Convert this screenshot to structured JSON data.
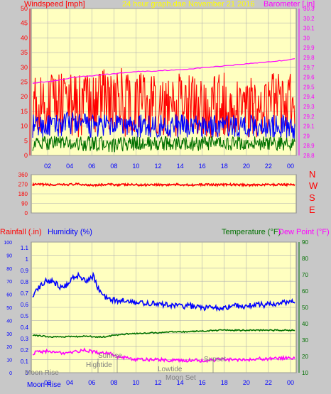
{
  "header": {
    "windspeed_label": "Windspeed [mph]",
    "title": "24 hour graph.dae   November 21 2016",
    "barometer_label": "Barometer [.in]"
  },
  "colors": {
    "panel": "#ffffc0",
    "windspeed_axis": "#ff0000",
    "barometer_axis": "#ff00ff",
    "title": "#ffff00",
    "humidity": "#0000ff",
    "temperature": "#007000",
    "dew_point": "#ff00ff",
    "direction": "#ff0000",
    "compass": "#ff0000"
  },
  "compass": {
    "n": "N",
    "w": "W",
    "s": "S",
    "e": "E"
  },
  "lower_header": {
    "rainfall_label": "Rainfall (.in)",
    "humidity_label": "Humidity (%)",
    "temperature_label": "Temperature (°F)",
    "dew_point_label": "Dew Point (°F)"
  },
  "annotations": {
    "moon_rise_top": "Moon Rise",
    "hightide": "Hightide",
    "sunrise": "Sunrise",
    "lowtide": "Lowtide",
    "moon_set": "Moon Set",
    "sunset": "Sunset",
    "moon_rise_axis": "Moon Rise"
  },
  "chart_data": [
    {
      "type": "line",
      "name": "wind-barometer",
      "x_ticks": [
        "02",
        "04",
        "06",
        "08",
        "10",
        "12",
        "14",
        "16",
        "18",
        "20",
        "22",
        "00"
      ],
      "y_left_ticks": [
        "0",
        "5",
        "10",
        "15",
        "20",
        "25",
        "30",
        "35",
        "40",
        "45",
        "50"
      ],
      "y_left_range": [
        0,
        50
      ],
      "y_right_ticks": [
        "28.8",
        "28.9",
        "29",
        "29.1",
        "29.2",
        "29.3",
        "29.4",
        "29.5",
        "29.6",
        "29.7",
        "29.8",
        "29.9",
        "30",
        "30.1",
        "30.2",
        "30.3"
      ],
      "y_right_range": [
        28.8,
        30.3
      ],
      "series": [
        {
          "color": "#ff0000",
          "values": [
            18,
            17,
            18,
            17,
            17,
            17,
            18,
            18,
            17,
            17,
            17,
            17,
            17,
            17,
            17,
            17,
            17,
            17,
            17,
            17,
            17,
            17,
            17,
            17
          ]
        },
        {
          "color": "#0000ff",
          "values": [
            10,
            10,
            10,
            11,
            11,
            10,
            10,
            10,
            10,
            10,
            10,
            10,
            10,
            10,
            10,
            10,
            10,
            10,
            10,
            10,
            10,
            10,
            10,
            9
          ]
        },
        {
          "color": "#007000",
          "values": [
            4,
            4,
            5,
            4,
            4,
            4,
            4,
            3,
            4,
            4,
            4,
            4,
            4,
            4,
            4,
            4,
            4,
            4,
            4,
            4,
            4,
            4,
            4,
            4
          ]
        },
        {
          "color": "#ff00ff",
          "values": [
            29.54,
            29.55,
            29.56,
            29.58,
            29.6,
            29.61,
            29.62,
            29.63,
            29.64,
            29.65,
            29.66,
            29.66,
            29.67,
            29.67,
            29.68,
            29.69,
            29.7,
            29.71,
            29.72,
            29.73,
            29.74,
            29.75,
            29.76,
            29.77,
            29.79
          ]
        }
      ]
    },
    {
      "type": "line",
      "name": "wind-direction",
      "y_ticks": [
        "0",
        "90",
        "180",
        "270",
        "360"
      ],
      "y_range": [
        0,
        360
      ],
      "series": [
        {
          "color": "#ff0000",
          "values": [
            265,
            268,
            262,
            266,
            270,
            264,
            263,
            268,
            265,
            266,
            262,
            268,
            264,
            266,
            265,
            263,
            268,
            264,
            266,
            265,
            263,
            266,
            265,
            268,
            264
          ]
        }
      ]
    },
    {
      "type": "line",
      "name": "humidity-temperature",
      "y_left_rain_ticks": [
        "0",
        "0.1",
        "0.2",
        "0.3",
        "0.4",
        "0.5",
        "0.6",
        "0.7",
        "0.8",
        "0.9",
        "1",
        "1.1"
      ],
      "y_left_humidity_ticks": [
        "0",
        "10",
        "20",
        "30",
        "40",
        "50",
        "60",
        "70",
        "80",
        "90",
        "100"
      ],
      "y_left_range": [
        0,
        100
      ],
      "y_right_ticks": [
        "10",
        "20",
        "30",
        "40",
        "50",
        "60",
        "70",
        "80",
        "90"
      ],
      "y_right_range": [
        10,
        90
      ],
      "x_ticks": [
        "Moon Rise",
        "02",
        "04",
        "06",
        "08",
        "10",
        "12",
        "14",
        "16",
        "18",
        "20",
        "22",
        "00"
      ],
      "series": [
        {
          "color": "#0000ff",
          "values": [
            60,
            66,
            70,
            70,
            66,
            67,
            74,
            74,
            71,
            74,
            62,
            57,
            56,
            55,
            55,
            54,
            53,
            53,
            53,
            52,
            52,
            52,
            51,
            51,
            51,
            50,
            50,
            50,
            50,
            50,
            51,
            51,
            51,
            52,
            52,
            52,
            53,
            53,
            54,
            55
          ]
        },
        {
          "color": "#007000",
          "values": [
            33,
            32.5,
            32,
            32,
            32,
            32,
            32.5,
            32,
            32,
            33,
            33.5,
            34,
            34,
            34.5,
            34.5,
            35,
            35,
            35,
            35.5,
            35.5,
            36,
            36,
            36,
            36,
            36,
            36,
            36,
            36,
            36,
            36
          ]
        },
        {
          "color": "#ff00ff",
          "values": [
            22,
            23,
            23,
            22,
            22,
            23,
            24,
            23,
            22,
            22,
            20,
            19,
            18,
            18,
            18,
            18,
            17.5,
            17.5,
            17.5,
            17.5,
            17.5,
            17.5,
            18,
            18,
            18,
            18,
            18,
            18.5,
            18.5,
            19,
            19,
            19
          ]
        }
      ]
    }
  ]
}
